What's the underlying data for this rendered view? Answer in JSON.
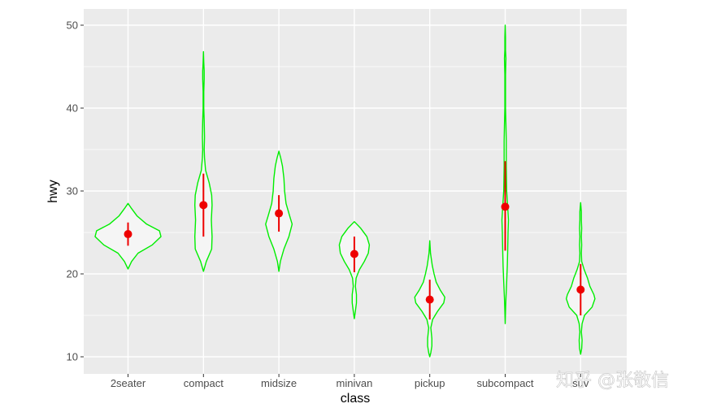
{
  "chart_data": {
    "type": "violin",
    "xlabel": "class",
    "ylabel": "hwy",
    "categories": [
      "2seater",
      "compact",
      "midsize",
      "minivan",
      "pickup",
      "subcompact",
      "suv"
    ],
    "y_ticks": [
      10,
      20,
      30,
      40,
      50
    ],
    "ylim": [
      8,
      52
    ],
    "grid": true,
    "colors": {
      "panel": "#ebebeb",
      "grid": "#ffffff",
      "violin_stroke": "#00ee00",
      "violin_fill": "#f5f5f5",
      "summary": "#ee0000"
    },
    "summary": [
      {
        "category": "2seater",
        "mean": 24.8,
        "low": 23.4,
        "high": 26.2
      },
      {
        "category": "compact",
        "mean": 28.3,
        "low": 24.5,
        "high": 32.1
      },
      {
        "category": "midsize",
        "mean": 27.3,
        "low": 25.1,
        "high": 29.5
      },
      {
        "category": "minivan",
        "mean": 22.4,
        "low": 20.2,
        "high": 24.5
      },
      {
        "category": "pickup",
        "mean": 16.9,
        "low": 14.5,
        "high": 19.3
      },
      {
        "category": "subcompact",
        "mean": 28.1,
        "low": 22.8,
        "high": 33.6
      },
      {
        "category": "suv",
        "mean": 18.1,
        "low": 15.0,
        "high": 21.2
      }
    ],
    "violins": [
      {
        "category": "2seater",
        "profile": [
          [
            20.6,
            0
          ],
          [
            21.5,
            0.1
          ],
          [
            22.5,
            0.28
          ],
          [
            23.5,
            0.68
          ],
          [
            24.5,
            0.92
          ],
          [
            25.2,
            0.88
          ],
          [
            26,
            0.52
          ],
          [
            27,
            0.25
          ],
          [
            28,
            0.08
          ],
          [
            28.5,
            0
          ]
        ]
      },
      {
        "category": "compact",
        "profile": [
          [
            20.3,
            0
          ],
          [
            21.5,
            0.08
          ],
          [
            23,
            0.23
          ],
          [
            24.5,
            0.24
          ],
          [
            26.5,
            0.22
          ],
          [
            28.3,
            0.24
          ],
          [
            29.5,
            0.23
          ],
          [
            31,
            0.16
          ],
          [
            32.5,
            0.06
          ],
          [
            34,
            0.03
          ],
          [
            35,
            0.02
          ],
          [
            36.5,
            0.03
          ],
          [
            38.5,
            0.02
          ],
          [
            40,
            0.01
          ],
          [
            42,
            0.01
          ],
          [
            43.5,
            0.02
          ],
          [
            44.5,
            0.02
          ],
          [
            45.5,
            0.01
          ],
          [
            46.8,
            0
          ]
        ]
      },
      {
        "category": "midsize",
        "profile": [
          [
            20.3,
            0
          ],
          [
            21.5,
            0.04
          ],
          [
            23,
            0.14
          ],
          [
            24.5,
            0.28
          ],
          [
            26,
            0.37
          ],
          [
            27,
            0.3
          ],
          [
            28.5,
            0.2
          ],
          [
            30,
            0.16
          ],
          [
            31.5,
            0.14
          ],
          [
            33,
            0.1
          ],
          [
            34,
            0.05
          ],
          [
            34.8,
            0
          ]
        ]
      },
      {
        "category": "minivan",
        "profile": [
          [
            14.6,
            0
          ],
          [
            15.5,
            0.03
          ],
          [
            16.5,
            0.06
          ],
          [
            17.5,
            0.06
          ],
          [
            18.5,
            0.03
          ],
          [
            19.5,
            0.05
          ],
          [
            20.5,
            0.14
          ],
          [
            21.5,
            0.28
          ],
          [
            22.5,
            0.39
          ],
          [
            23.5,
            0.42
          ],
          [
            24.5,
            0.35
          ],
          [
            25.5,
            0.18
          ],
          [
            26.3,
            0
          ]
        ]
      },
      {
        "category": "pickup",
        "profile": [
          [
            10,
            0
          ],
          [
            10.5,
            0.03
          ],
          [
            11.3,
            0.06
          ],
          [
            12.2,
            0.06
          ],
          [
            13.5,
            0.03
          ],
          [
            14.5,
            0.08
          ],
          [
            15.5,
            0.22
          ],
          [
            16.5,
            0.39
          ],
          [
            17.2,
            0.42
          ],
          [
            18,
            0.3
          ],
          [
            19,
            0.18
          ],
          [
            20,
            0.12
          ],
          [
            21,
            0.07
          ],
          [
            22.5,
            0.02
          ],
          [
            24,
            0
          ]
        ]
      },
      {
        "category": "subcompact",
        "profile": [
          [
            14,
            0
          ],
          [
            15.5,
            0.01
          ],
          [
            17,
            0.02
          ],
          [
            19,
            0.04
          ],
          [
            21,
            0.06
          ],
          [
            23,
            0.07
          ],
          [
            25,
            0.08
          ],
          [
            26.5,
            0.09
          ],
          [
            28,
            0.07
          ],
          [
            30,
            0.04
          ],
          [
            33,
            0.03
          ],
          [
            36,
            0.03
          ],
          [
            38,
            0.02
          ],
          [
            40,
            0.01
          ],
          [
            42,
            0.01
          ],
          [
            44,
            0.01
          ],
          [
            46,
            0.02
          ],
          [
            47,
            0.01
          ],
          [
            48.5,
            0.01
          ],
          [
            50,
            0
          ]
        ]
      },
      {
        "category": "suv",
        "profile": [
          [
            10.3,
            0
          ],
          [
            11,
            0.03
          ],
          [
            12,
            0.04
          ],
          [
            13,
            0.02
          ],
          [
            14,
            0.04
          ],
          [
            15,
            0.11
          ],
          [
            16,
            0.32
          ],
          [
            17,
            0.4
          ],
          [
            17.5,
            0.37
          ],
          [
            18.5,
            0.26
          ],
          [
            19.5,
            0.19
          ],
          [
            20.5,
            0.1
          ],
          [
            21.5,
            0.03
          ],
          [
            22.5,
            0.02
          ],
          [
            23.5,
            0.03
          ],
          [
            24.5,
            0.02
          ],
          [
            25.5,
            0.03
          ],
          [
            26.5,
            0.02
          ],
          [
            27.5,
            0.02
          ],
          [
            28.6,
            0
          ]
        ]
      }
    ]
  },
  "watermark": {
    "text": "知乎 @张敬信"
  }
}
